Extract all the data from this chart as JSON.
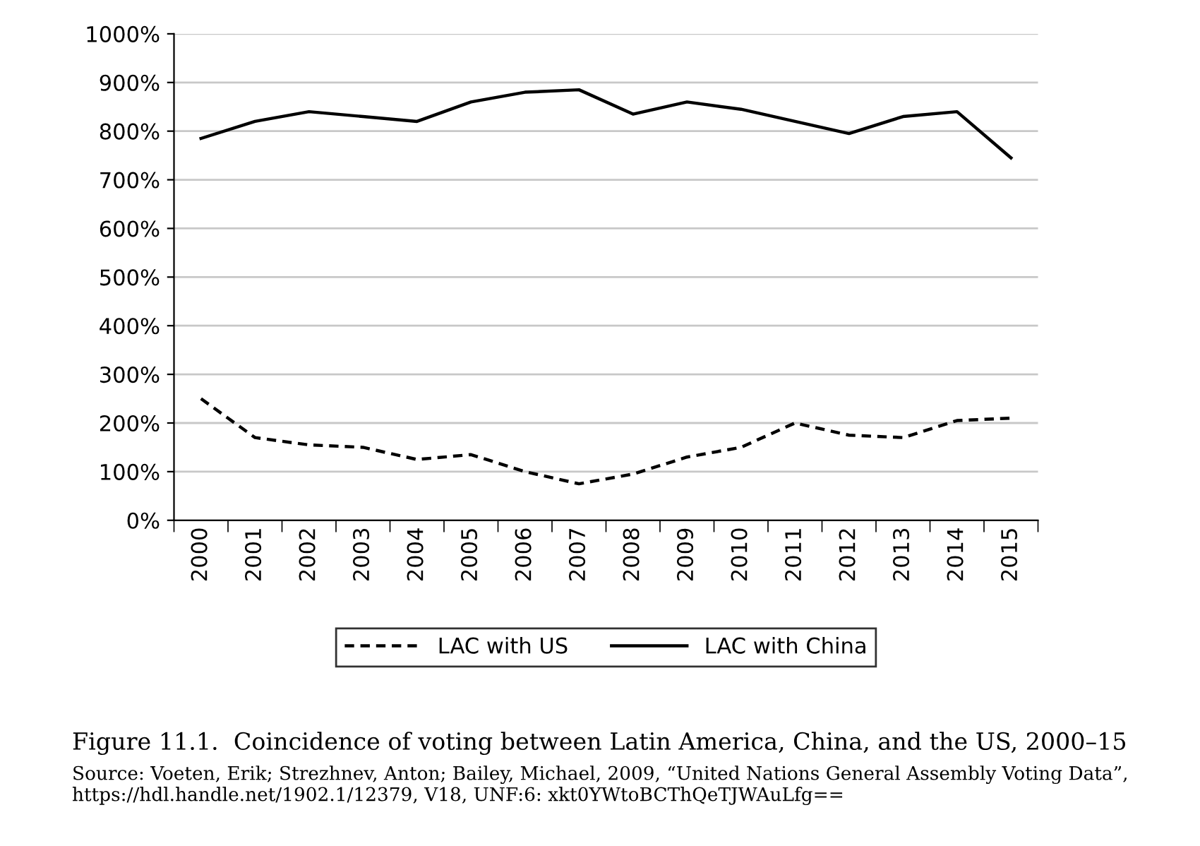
{
  "chart_data": {
    "type": "line",
    "categories": [
      "2000",
      "2001",
      "2002",
      "2003",
      "2004",
      "2005",
      "2006",
      "2007",
      "2008",
      "2009",
      "2010",
      "2011",
      "2012",
      "2013",
      "2014",
      "2015"
    ],
    "series": [
      {
        "name": "LAC with US",
        "color": "#000000",
        "line_style": "dashed",
        "values": [
          250,
          170,
          155,
          150,
          125,
          135,
          100,
          75,
          95,
          130,
          150,
          200,
          175,
          170,
          205,
          210
        ]
      },
      {
        "name": "LAC with China",
        "color": "#000000",
        "line_style": "solid",
        "values": [
          785,
          820,
          840,
          830,
          820,
          860,
          880,
          885,
          835,
          860,
          845,
          820,
          795,
          830,
          840,
          745
        ]
      }
    ],
    "ylim": [
      0,
      1000
    ],
    "yticks": [
      {
        "value": 0,
        "label": "0%"
      },
      {
        "value": 100,
        "label": "100%"
      },
      {
        "value": 200,
        "label": "200%"
      },
      {
        "value": 300,
        "label": "300%"
      },
      {
        "value": 400,
        "label": "400%"
      },
      {
        "value": 500,
        "label": "500%"
      },
      {
        "value": 600,
        "label": "600%"
      },
      {
        "value": 700,
        "label": "700%"
      },
      {
        "value": 800,
        "label": "800%"
      },
      {
        "value": 900,
        "label": "900%"
      },
      {
        "value": 1000,
        "label": "1000%"
      }
    ],
    "grid": "y",
    "legend": "bottom",
    "marker": "none",
    "annotations": [
      "Figure 11.1.  Coincidence of voting between Latin America, China, and the US, 2000–15",
      "Source: Voeten, Erik; Strezhnev, Anton; Bailey, Michael, 2009, “United Nations General Assembly Voting Data”, https://hdl.handle.net/1902.1/12379, V18, UNF:6: xkt0YWtoBCThQeTJWAuLfg=="
    ]
  }
}
